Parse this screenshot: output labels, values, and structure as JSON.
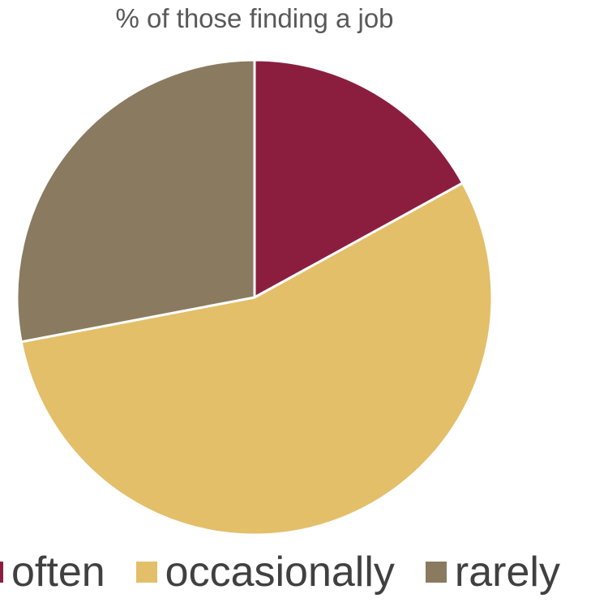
{
  "chart_data": {
    "type": "pie",
    "title": "% of those finding a job",
    "categories": [
      "often",
      "occasionally",
      "rarely"
    ],
    "values": [
      17,
      55,
      28
    ],
    "colors": [
      "#8b1e3f",
      "#e3bf6a",
      "#8a7a5f"
    ],
    "legend_position": "bottom",
    "start_angle_deg": 0,
    "direction": "clockwise"
  }
}
